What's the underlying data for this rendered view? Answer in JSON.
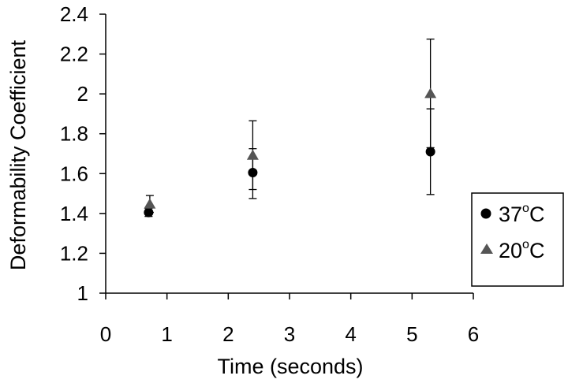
{
  "chart_data": {
    "type": "scatter",
    "xlabel": "Time (seconds)",
    "ylabel": "Deformability Coefficient",
    "xlim": [
      0,
      6
    ],
    "ylim": [
      1,
      2.4
    ],
    "xticks": [
      "0",
      "1",
      "2",
      "3",
      "4",
      "5",
      "6"
    ],
    "yticks": [
      "1",
      "1.2",
      "1.4",
      "1.6",
      "1.8",
      "2",
      "2.2",
      "2.4"
    ],
    "grid": false,
    "legend_position": "right",
    "series": [
      {
        "name_base": "37",
        "name_sup": "o",
        "name_unit": "C",
        "marker": "circle",
        "color": "#000000",
        "points": [
          {
            "x": 0.7,
            "y": 1.405,
            "err_low": 1.385,
            "err_high": 1.425
          },
          {
            "x": 2.4,
            "y": 1.605,
            "err_low": 1.52,
            "err_high": 1.725
          },
          {
            "x": 5.3,
            "y": 1.71,
            "err_low": 1.495,
            "err_high": 1.925
          }
        ]
      },
      {
        "name_base": "20",
        "name_sup": "o",
        "name_unit": "C",
        "marker": "triangle",
        "color": "#555555",
        "points": [
          {
            "x": 0.72,
            "y": 1.445,
            "err_low": 1.405,
            "err_high": 1.49
          },
          {
            "x": 2.4,
            "y": 1.69,
            "err_low": 1.475,
            "err_high": 1.865
          },
          {
            "x": 5.3,
            "y": 2.0,
            "err_low": 1.73,
            "err_high": 2.275
          }
        ]
      }
    ]
  }
}
